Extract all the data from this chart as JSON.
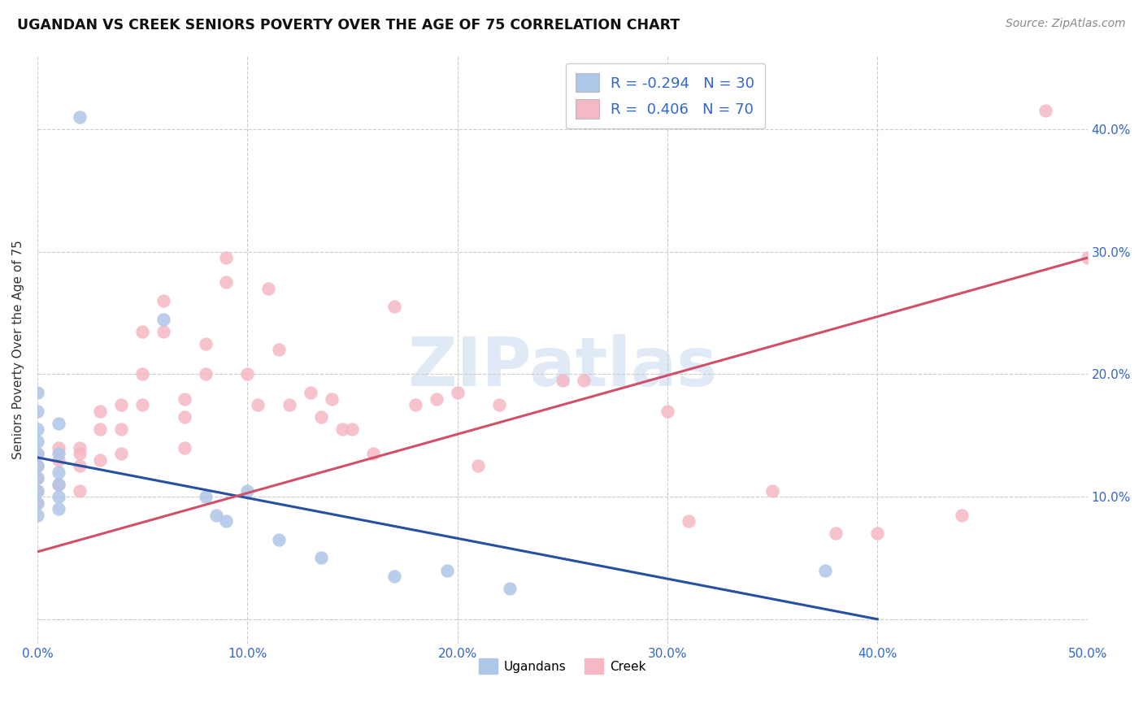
{
  "title": "UGANDAN VS CREEK SENIORS POVERTY OVER THE AGE OF 75 CORRELATION CHART",
  "source": "Source: ZipAtlas.com",
  "ylabel": "Seniors Poverty Over the Age of 75",
  "xlim": [
    0,
    0.5
  ],
  "ylim": [
    -0.02,
    0.46
  ],
  "watermark": "ZIPatlas",
  "legend_r_ugandan": "-0.294",
  "legend_n_ugandan": "30",
  "legend_r_creek": "0.406",
  "legend_n_creek": "70",
  "ugandan_color": "#aec6e8",
  "creek_color": "#f5b8c4",
  "ugandan_line_color": "#2850a0",
  "creek_line_color": "#d0506a",
  "background_color": "#ffffff",
  "ugandan_line_x0": 0.0,
  "ugandan_line_y0": 0.132,
  "ugandan_line_x1": 0.4,
  "ugandan_line_y1": 0.0,
  "creek_line_x0": 0.0,
  "creek_line_y0": 0.055,
  "creek_line_x1": 0.5,
  "creek_line_y1": 0.295,
  "ugandan_x": [
    0.02,
    0.06,
    0.0,
    0.0,
    0.0,
    0.0,
    0.0,
    0.0,
    0.0,
    0.0,
    0.0,
    0.0,
    0.01,
    0.01,
    0.01,
    0.01,
    0.01,
    0.01,
    0.08,
    0.085,
    0.09,
    0.1,
    0.115,
    0.135,
    0.17,
    0.195,
    0.225,
    0.375
  ],
  "ugandan_y": [
    0.41,
    0.245,
    0.185,
    0.17,
    0.155,
    0.145,
    0.135,
    0.125,
    0.115,
    0.105,
    0.095,
    0.085,
    0.16,
    0.135,
    0.12,
    0.11,
    0.1,
    0.09,
    0.1,
    0.085,
    0.08,
    0.105,
    0.065,
    0.05,
    0.035,
    0.04,
    0.025,
    0.04
  ],
  "creek_x": [
    0.0,
    0.0,
    0.0,
    0.0,
    0.0,
    0.01,
    0.01,
    0.01,
    0.02,
    0.02,
    0.02,
    0.02,
    0.03,
    0.03,
    0.03,
    0.04,
    0.04,
    0.04,
    0.05,
    0.05,
    0.05,
    0.06,
    0.06,
    0.07,
    0.07,
    0.07,
    0.08,
    0.08,
    0.09,
    0.09,
    0.1,
    0.105,
    0.11,
    0.115,
    0.12,
    0.13,
    0.135,
    0.14,
    0.145,
    0.15,
    0.16,
    0.17,
    0.18,
    0.19,
    0.2,
    0.21,
    0.22,
    0.25,
    0.26,
    0.3,
    0.31,
    0.35,
    0.38,
    0.4,
    0.44,
    0.48,
    0.5
  ],
  "creek_y": [
    0.135,
    0.125,
    0.115,
    0.105,
    0.095,
    0.14,
    0.13,
    0.11,
    0.14,
    0.135,
    0.125,
    0.105,
    0.17,
    0.155,
    0.13,
    0.175,
    0.155,
    0.135,
    0.235,
    0.2,
    0.175,
    0.26,
    0.235,
    0.18,
    0.165,
    0.14,
    0.225,
    0.2,
    0.295,
    0.275,
    0.2,
    0.175,
    0.27,
    0.22,
    0.175,
    0.185,
    0.165,
    0.18,
    0.155,
    0.155,
    0.135,
    0.255,
    0.175,
    0.18,
    0.185,
    0.125,
    0.175,
    0.195,
    0.195,
    0.17,
    0.08,
    0.105,
    0.07,
    0.07,
    0.085,
    0.415,
    0.295
  ]
}
